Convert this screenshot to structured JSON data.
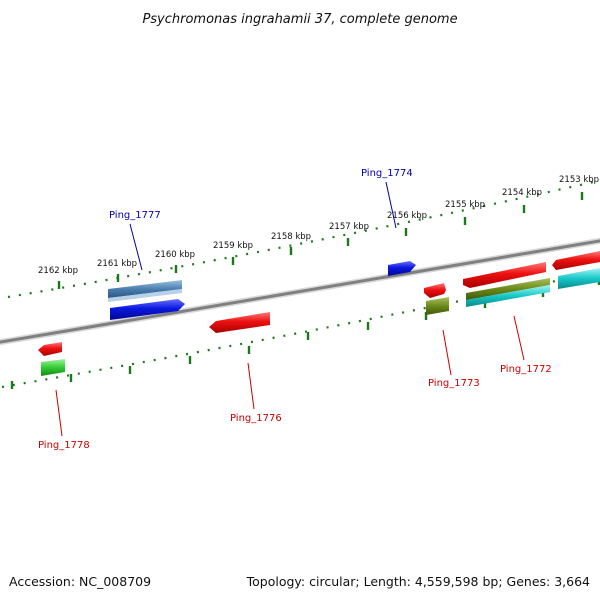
{
  "title": "Psychromonas ingrahamii 37, complete genome",
  "footer": {
    "accession": "Accession: NC_008709",
    "summary": "Topology: circular; Length: 4,559,598 bp; Genes: 3,664"
  },
  "ticks": [
    {
      "label": "2153 kbp"
    },
    {
      "label": "2154 kbp"
    },
    {
      "label": "2155 kbp"
    },
    {
      "label": "2156 kbp"
    },
    {
      "label": "2157 kbp"
    },
    {
      "label": "2158 kbp"
    },
    {
      "label": "2159 kbp"
    },
    {
      "label": "2160 kbp"
    },
    {
      "label": "2161 kbp"
    },
    {
      "label": "2162 kbp"
    }
  ],
  "genes": [
    {
      "name": "Ping_1772",
      "color": "#cc0000"
    },
    {
      "name": "Ping_1773",
      "color": "#cc0000"
    },
    {
      "name": "Ping_1774",
      "color": "#0000aa"
    },
    {
      "name": "Ping_1776",
      "color": "#cc0000"
    },
    {
      "name": "Ping_1777",
      "color": "#0000aa"
    },
    {
      "name": "Ping_1778",
      "color": "#cc0000"
    }
  ],
  "colors": {
    "backbone": "#808080",
    "tick": "#1a7a1a",
    "feature_red": "#ee1111",
    "feature_blue": "#0a18e0",
    "feature_steel": "#4a7fb0",
    "feature_olive": "#6a8a1a",
    "feature_green": "#33cc33",
    "feature_cyan": "#17c7c7"
  }
}
